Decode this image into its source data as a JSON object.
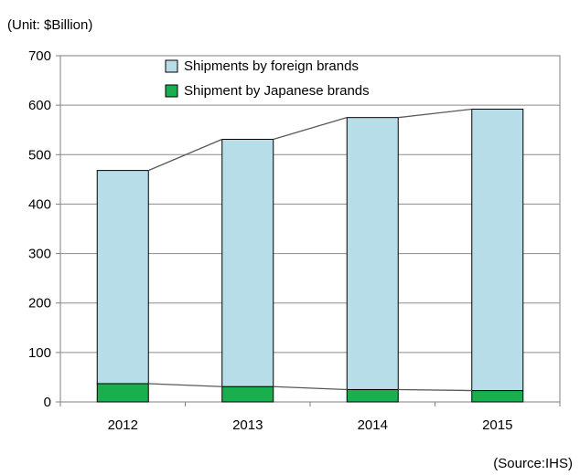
{
  "chart_data": {
    "type": "bar",
    "stacked": true,
    "unit_note": "(Unit: $Billion)",
    "source_note": "(Source:IHS)",
    "categories": [
      "2012",
      "2013",
      "2014",
      "2015"
    ],
    "series": [
      {
        "name": "Shipment by Japanese brands",
        "values": [
          37,
          31,
          25,
          23
        ],
        "color": "#1aaf4e"
      },
      {
        "name": "Shipments by foreign brands",
        "values": [
          431,
          500,
          550,
          569
        ],
        "color": "#b7dde8"
      }
    ],
    "totals": [
      468,
      531,
      575,
      592
    ],
    "ylim": [
      0,
      700
    ],
    "yticks": [
      0,
      100,
      200,
      300,
      400,
      500,
      600,
      700
    ],
    "grid": true,
    "legend": {
      "position": "top-center",
      "entries": [
        {
          "label": "Shipments by foreign brands",
          "color": "#b7dde8"
        },
        {
          "label": "Shipment by Japanese brands",
          "color": "#1aaf4e"
        }
      ]
    },
    "connector_lines": true
  }
}
